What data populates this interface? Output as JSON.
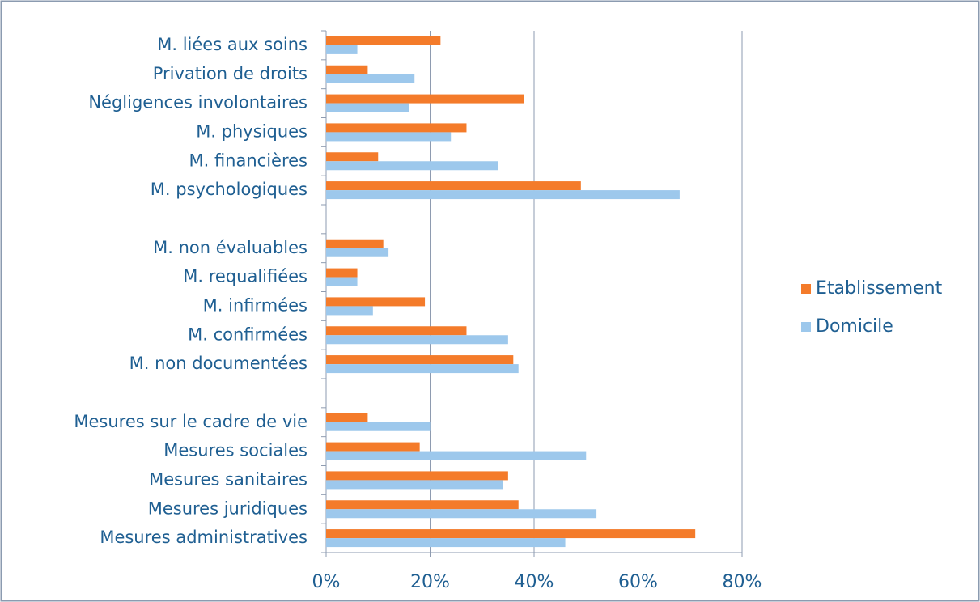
{
  "chart_data": {
    "type": "barh",
    "categories": [
      "M. liées aux soins",
      "Privation de droits",
      "Négligences involontaires",
      "M. physiques",
      "M. financières",
      "M. psychologiques",
      null,
      "M. non évaluables",
      "M. requalifiées",
      "M. infirmées",
      "M. confirmées",
      "M. non documentées",
      null,
      "Mesures sur le cadre de vie",
      "Mesures sociales",
      "Mesures sanitaires",
      "Mesures juridiques",
      "Mesures administratives"
    ],
    "series": [
      {
        "name": "Etablissement",
        "color": "#f47b2a",
        "values": [
          22,
          8,
          38,
          27,
          10,
          49,
          null,
          11,
          6,
          19,
          27,
          36,
          null,
          8,
          18,
          35,
          37,
          71
        ]
      },
      {
        "name": "Domicile",
        "color": "#9dc8ec",
        "values": [
          6,
          17,
          16,
          24,
          33,
          68,
          null,
          12,
          6,
          9,
          35,
          37,
          null,
          20,
          50,
          34,
          52,
          46
        ]
      }
    ],
    "xlim": [
      0,
      80
    ],
    "xticks": [
      {
        "value": 0,
        "label": "0%"
      },
      {
        "value": 20,
        "label": "20%"
      },
      {
        "value": 40,
        "label": "40%"
      },
      {
        "value": 60,
        "label": "60%"
      },
      {
        "value": 80,
        "label": "80%"
      }
    ],
    "grid": true,
    "legend": "right"
  }
}
